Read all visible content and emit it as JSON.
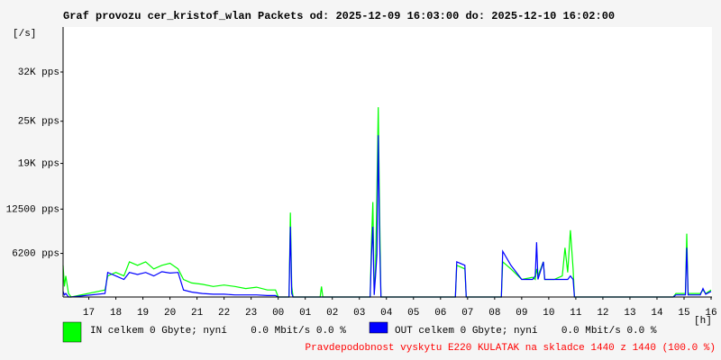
{
  "chart_data": {
    "type": "line",
    "title": "Graf provozu cer_kristof_wlan Packets od: 2025-12-09 16:03:00 do: 2025-12-10 16:02:00",
    "y_unit": "[/s]",
    "x_unit": "[h]",
    "footer": "Pravdepodobnost vyskytu E220 KULATAK na skladce 1440 z 1440 (100.0 %)",
    "xlim": [
      16.05,
      40.033
    ],
    "xticks": [
      {
        "value": 17,
        "label": "17"
      },
      {
        "value": 18,
        "label": "18"
      },
      {
        "value": 19,
        "label": "19"
      },
      {
        "value": 20,
        "label": "20"
      },
      {
        "value": 21,
        "label": "21"
      },
      {
        "value": 22,
        "label": "22"
      },
      {
        "value": 23,
        "label": "23"
      },
      {
        "value": 24,
        "label": "00"
      },
      {
        "value": 25,
        "label": "01"
      },
      {
        "value": 26,
        "label": "02"
      },
      {
        "value": 27,
        "label": "03"
      },
      {
        "value": 28,
        "label": "04"
      },
      {
        "value": 29,
        "label": "05"
      },
      {
        "value": 30,
        "label": "06"
      },
      {
        "value": 31,
        "label": "07"
      },
      {
        "value": 32,
        "label": "08"
      },
      {
        "value": 33,
        "label": "09"
      },
      {
        "value": 34,
        "label": "10"
      },
      {
        "value": 35,
        "label": "11"
      },
      {
        "value": 36,
        "label": "12"
      },
      {
        "value": 37,
        "label": "13"
      },
      {
        "value": 38,
        "label": "14"
      },
      {
        "value": 39,
        "label": "15"
      },
      {
        "value": 40,
        "label": "16"
      }
    ],
    "ylim": [
      0,
      38400
    ],
    "yticks": [
      {
        "value": 6200,
        "label": "6200 pps"
      },
      {
        "value": 12500,
        "label": "12500 pps"
      },
      {
        "value": 19000,
        "label": "19K pps"
      },
      {
        "value": 25000,
        "label": "25K pps"
      },
      {
        "value": 32000,
        "label": "32K pps"
      }
    ],
    "grid": false,
    "x": [
      16.05,
      16.1,
      16.15,
      16.25,
      16.35,
      17.6,
      17.7,
      18.0,
      18.3,
      18.5,
      18.8,
      19.1,
      19.4,
      19.7,
      20.0,
      20.3,
      20.5,
      20.8,
      21.2,
      21.6,
      22.0,
      22.4,
      22.8,
      23.2,
      23.6,
      23.9,
      24.0,
      24.4,
      24.45,
      24.5,
      24.55,
      25.55,
      25.6,
      25.65,
      27.4,
      27.45,
      27.5,
      27.55,
      27.6,
      27.65,
      27.7,
      27.75,
      27.8,
      30.55,
      30.6,
      30.9,
      30.95,
      32.25,
      32.3,
      32.6,
      33.0,
      33.4,
      33.5,
      33.55,
      33.6,
      33.8,
      33.85,
      34.2,
      34.5,
      34.6,
      34.7,
      34.8,
      34.9,
      34.95,
      38.6,
      38.7,
      39.05,
      39.1,
      39.15,
      39.6,
      39.7,
      39.8,
      40.0
    ],
    "series": [
      {
        "name": "IN celkem 0 Gbyte; nyní    0.0 Mbit/s 0.0 %",
        "color": "#00ff00",
        "values": [
          4500,
          1500,
          3000,
          500,
          0,
          1000,
          3000,
          3500,
          3000,
          5000,
          4500,
          5000,
          4000,
          4500,
          4800,
          4000,
          2500,
          2000,
          1800,
          1500,
          1700,
          1500,
          1200,
          1400,
          1000,
          1000,
          0,
          0,
          12000,
          1500,
          0,
          0,
          1500,
          0,
          0,
          8000,
          13500,
          500,
          4000,
          15000,
          27000,
          12000,
          0,
          0,
          4500,
          4000,
          0,
          0,
          5000,
          4000,
          2500,
          2800,
          2500,
          4000,
          3000,
          5000,
          2500,
          2500,
          3000,
          7000,
          3500,
          9500,
          4000,
          0,
          0,
          500,
          500,
          9000,
          500,
          500,
          1000,
          500,
          1000
        ]
      },
      {
        "name": "OUT celkem 0 Gbyte; nyní    0.0 Mbit/s 0.0 %",
        "color": "#0000ff",
        "values": [
          800,
          300,
          500,
          0,
          0,
          500,
          3500,
          3000,
          2500,
          3500,
          3200,
          3500,
          3000,
          3600,
          3400,
          3500,
          1000,
          700,
          500,
          400,
          400,
          300,
          300,
          300,
          200,
          200,
          0,
          0,
          10000,
          500,
          0,
          0,
          0,
          0,
          0,
          6000,
          10000,
          300,
          3000,
          6000,
          23000,
          8000,
          0,
          0,
          5000,
          4500,
          0,
          0,
          6500,
          4500,
          2500,
          2500,
          3000,
          7800,
          2500,
          5000,
          2500,
          2500,
          2500,
          2500,
          2500,
          3000,
          2500,
          0,
          0,
          300,
          300,
          7000,
          300,
          300,
          1200,
          400,
          800
        ]
      }
    ]
  }
}
